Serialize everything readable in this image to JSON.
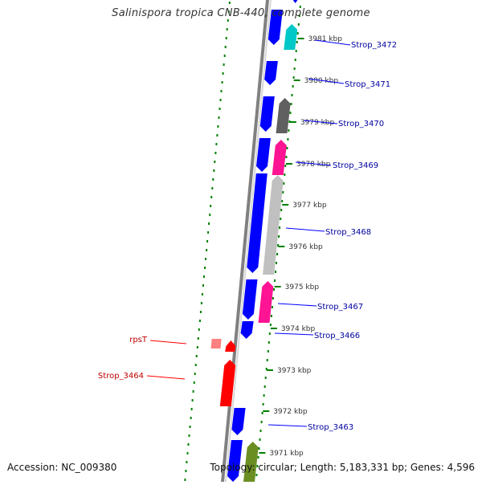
{
  "title": "Salinispora tropica CNB-440, complete genome",
  "footer": {
    "accession": "Accession: NC_009380",
    "summary": "Topology: circular; Length: 5,183,331 bp; Genes: 4,596"
  },
  "colors": {
    "backbone": "#808080",
    "forward_strand": "#0000ff",
    "reverse_strand_default": "#c0c0c0",
    "rna_genes": "#ff0000",
    "tick": "#008000",
    "gene_label": "#0000a0",
    "rna_label": "#c00000"
  },
  "scale": {
    "unit": "kbp",
    "labels": [
      "3981 kbp",
      "3980 kbp",
      "3979 kbp",
      "3978 kbp",
      "3977 kbp",
      "3976 kbp",
      "3975 kbp",
      "3974 kbp",
      "3973 kbp",
      "3972 kbp",
      "3971 kbp"
    ]
  },
  "gene_labels": [
    {
      "text": "Strop_3472",
      "kind": "gene"
    },
    {
      "text": "Strop_3471",
      "kind": "gene"
    },
    {
      "text": "Strop_3470",
      "kind": "gene"
    },
    {
      "text": "Strop_3469",
      "kind": "gene"
    },
    {
      "text": "Strop_3468",
      "kind": "gene"
    },
    {
      "text": "Strop_3467",
      "kind": "gene"
    },
    {
      "text": "Strop_3466",
      "kind": "gene"
    },
    {
      "text": "rpsT",
      "kind": "rna"
    },
    {
      "text": "Strop_3464",
      "kind": "rna"
    },
    {
      "text": "Strop_3463",
      "kind": "gene"
    }
  ]
}
